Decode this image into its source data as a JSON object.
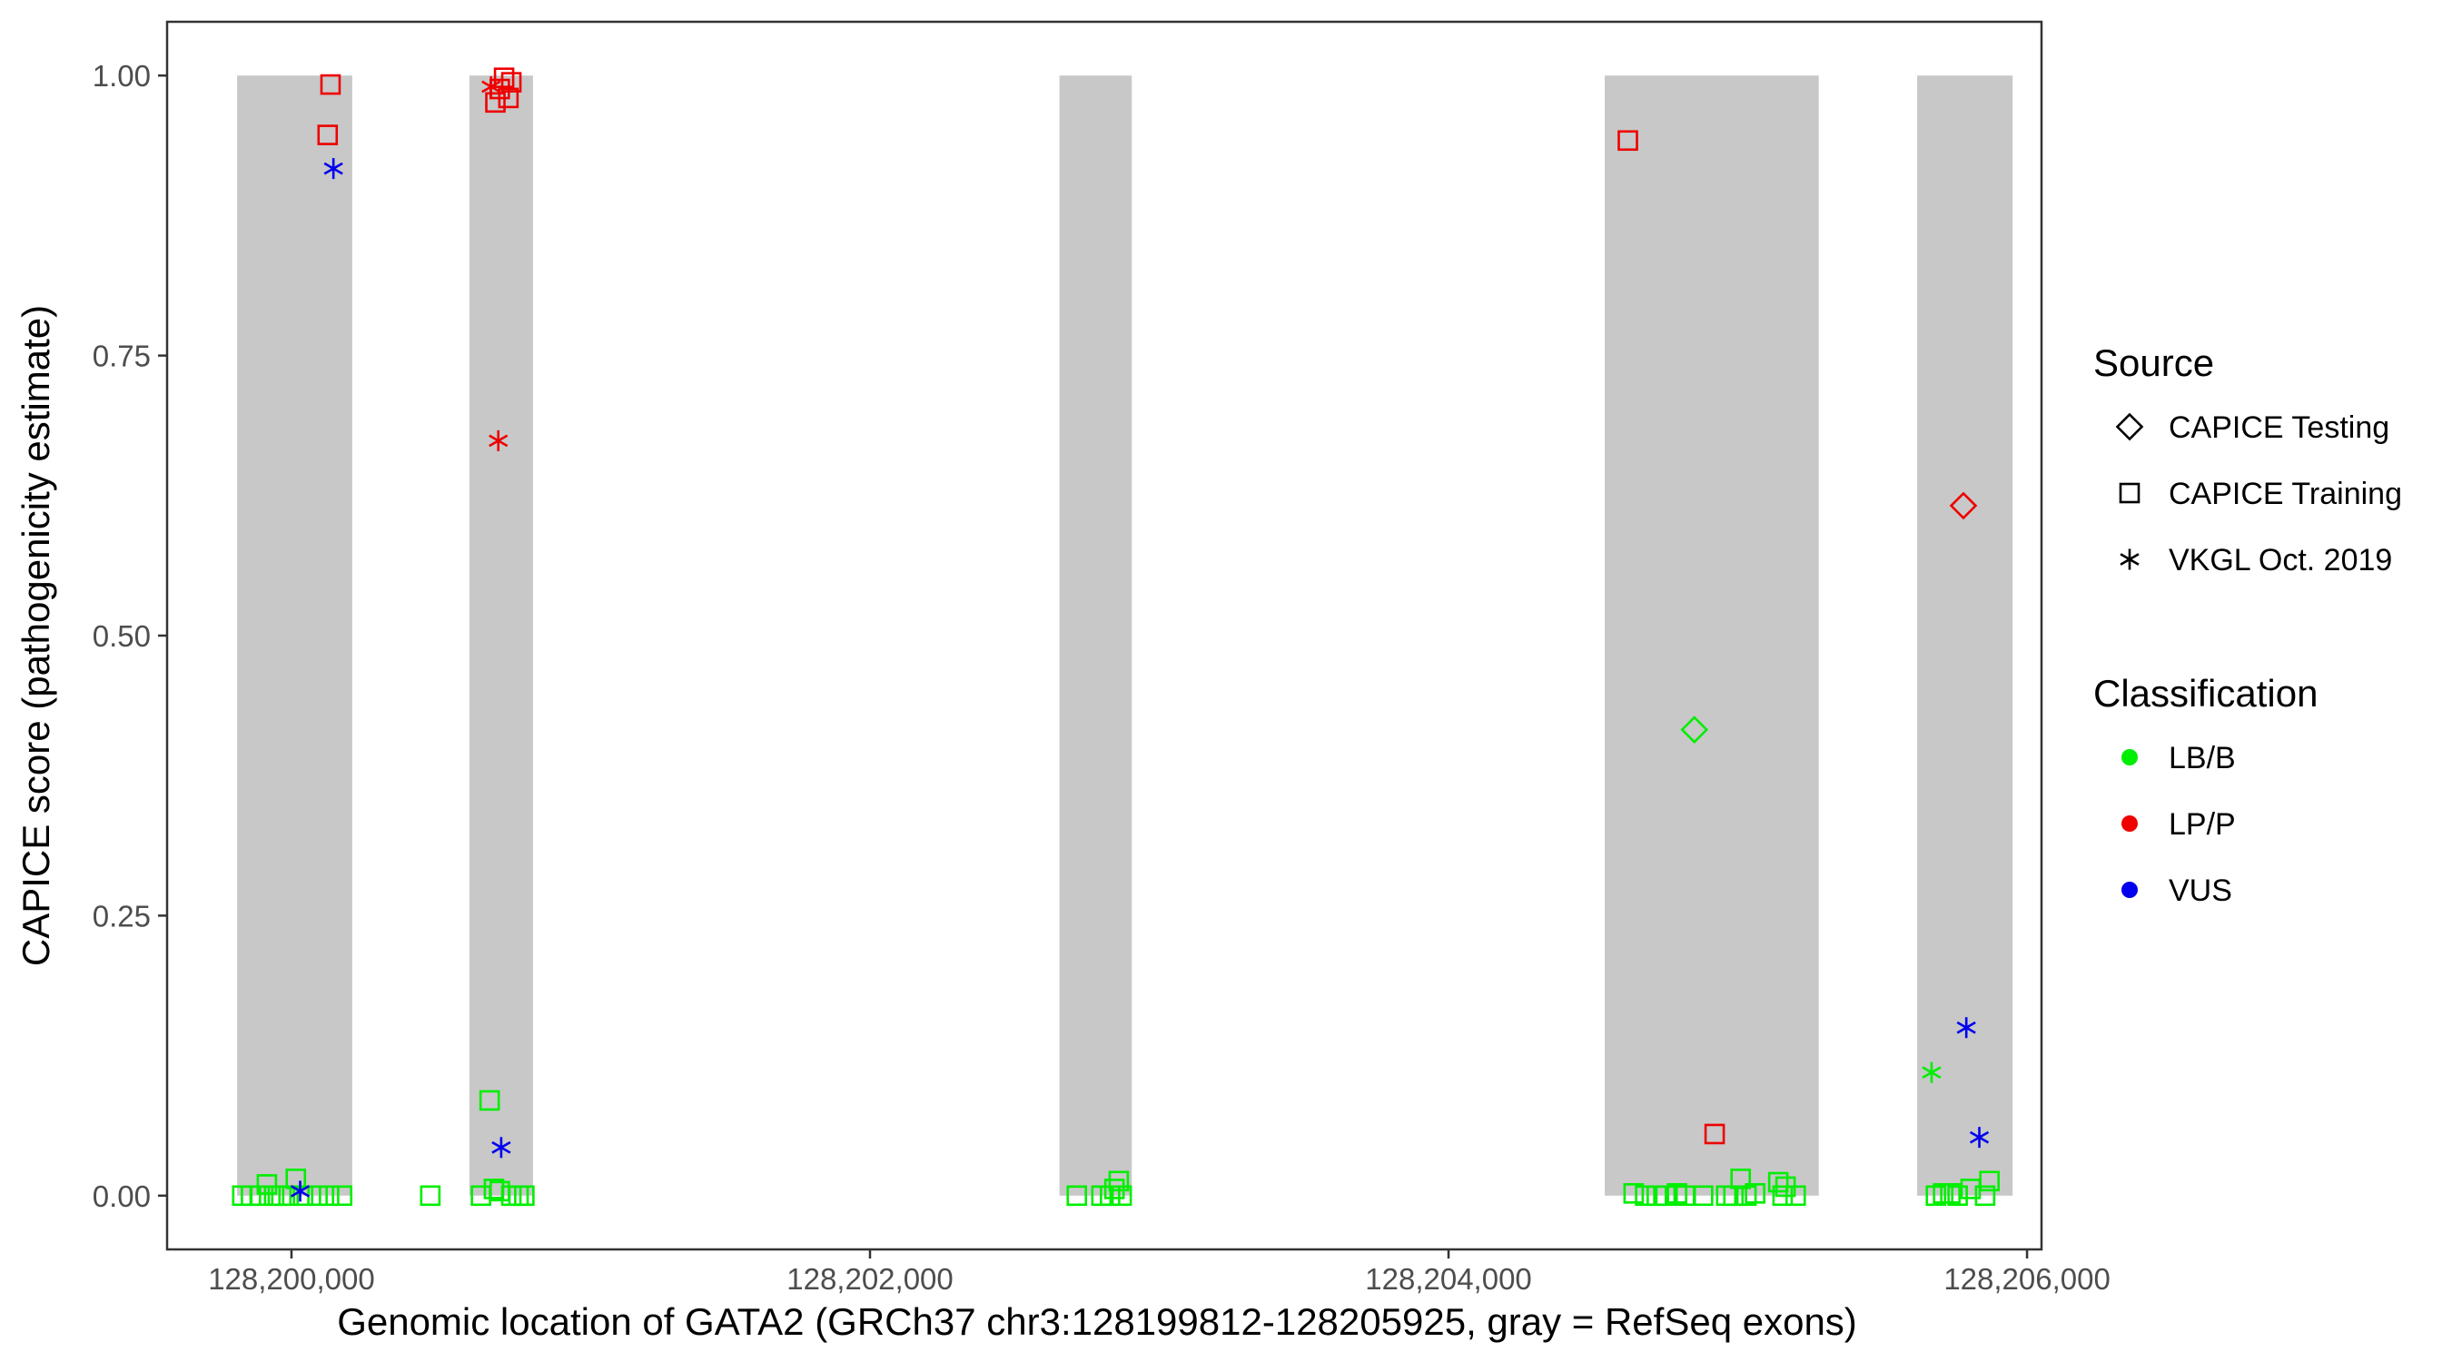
{
  "chart_data": {
    "type": "scatter",
    "title": "",
    "xlabel": "Genomic location of GATA2 (GRCh37 chr3:128199812-128205925, gray = RefSeq exons)",
    "ylabel": "CAPICE score (pathogenicity estimate)",
    "xlim": [
      128199570,
      128206050
    ],
    "ylim": [
      -0.048,
      1.048
    ],
    "x_ticks": [
      128200000,
      128202000,
      128204000,
      128206000
    ],
    "x_tick_labels": [
      "128,200,000",
      "128,202,000",
      "128,204,000",
      "128,206,000"
    ],
    "y_ticks": [
      0,
      0.25,
      0.5,
      0.75,
      1.0
    ],
    "y_tick_labels": [
      "0.00",
      "0.25",
      "0.50",
      "0.75",
      "1.00"
    ],
    "grid": false,
    "exon_shading_color": "#c8c8c8",
    "exons": [
      {
        "start": 128199812,
        "end": 128200210
      },
      {
        "start": 128200615,
        "end": 128200835
      },
      {
        "start": 128202655,
        "end": 128202905
      },
      {
        "start": 128204540,
        "end": 128205280
      },
      {
        "start": 128205620,
        "end": 128205950
      }
    ],
    "legend": {
      "placement": "right",
      "source": {
        "title": "Source",
        "entries": [
          {
            "label": "CAPICE Testing",
            "shape": "diamond"
          },
          {
            "label": "CAPICE Training",
            "shape": "square"
          },
          {
            "label": "VKGL Oct. 2019",
            "shape": "asterisk"
          }
        ]
      },
      "classification": {
        "title": "Classification",
        "entries": [
          {
            "label": "LB/B",
            "color": "#00ee00"
          },
          {
            "label": "LP/P",
            "color": "#ee0000"
          },
          {
            "label": "VUS",
            "color": "#0000ee"
          }
        ]
      }
    },
    "points": [
      {
        "x": 128199830,
        "y": 0.0,
        "source": "square",
        "cls": "LB/B"
      },
      {
        "x": 128199860,
        "y": 0.0,
        "source": "square",
        "cls": "LB/B"
      },
      {
        "x": 128199890,
        "y": 0.0,
        "source": "square",
        "cls": "LB/B"
      },
      {
        "x": 128199915,
        "y": 0.01,
        "source": "square",
        "cls": "LB/B"
      },
      {
        "x": 128199940,
        "y": 0.0,
        "source": "square",
        "cls": "LB/B"
      },
      {
        "x": 128199965,
        "y": 0.0,
        "source": "square",
        "cls": "LB/B"
      },
      {
        "x": 128199990,
        "y": 0.0,
        "source": "square",
        "cls": "LB/B"
      },
      {
        "x": 128200015,
        "y": 0.015,
        "source": "square",
        "cls": "LB/B"
      },
      {
        "x": 128200040,
        "y": 0.0,
        "source": "square",
        "cls": "LB/B"
      },
      {
        "x": 128200090,
        "y": 0.0,
        "source": "square",
        "cls": "LB/B"
      },
      {
        "x": 128200130,
        "y": 0.0,
        "source": "square",
        "cls": "LB/B"
      },
      {
        "x": 128200175,
        "y": 0.0,
        "source": "square",
        "cls": "LB/B"
      },
      {
        "x": 128200030,
        "y": 0.004,
        "source": "asterisk",
        "cls": "VUS"
      },
      {
        "x": 128200145,
        "y": 0.917,
        "source": "asterisk",
        "cls": "VUS"
      },
      {
        "x": 128200125,
        "y": 0.947,
        "source": "square",
        "cls": "LP/P"
      },
      {
        "x": 128200135,
        "y": 0.992,
        "source": "square",
        "cls": "LP/P"
      },
      {
        "x": 128200480,
        "y": 0.0,
        "source": "square",
        "cls": "LB/B"
      },
      {
        "x": 128200655,
        "y": 0.0,
        "source": "square",
        "cls": "LB/B"
      },
      {
        "x": 128200685,
        "y": 0.085,
        "source": "square",
        "cls": "LB/B"
      },
      {
        "x": 128200700,
        "y": 0.006,
        "source": "square",
        "cls": "LB/B"
      },
      {
        "x": 128200720,
        "y": 0.004,
        "source": "square",
        "cls": "LB/B"
      },
      {
        "x": 128200760,
        "y": 0.0,
        "source": "square",
        "cls": "LB/B"
      },
      {
        "x": 128200785,
        "y": 0.0,
        "source": "square",
        "cls": "LB/B"
      },
      {
        "x": 128200805,
        "y": 0.0,
        "source": "square",
        "cls": "LB/B"
      },
      {
        "x": 128200725,
        "y": 0.043,
        "source": "asterisk",
        "cls": "VUS"
      },
      {
        "x": 128200715,
        "y": 0.674,
        "source": "asterisk",
        "cls": "LP/P"
      },
      {
        "x": 128200690,
        "y": 0.99,
        "source": "asterisk",
        "cls": "LP/P"
      },
      {
        "x": 128200705,
        "y": 0.976,
        "source": "square",
        "cls": "LP/P"
      },
      {
        "x": 128200720,
        "y": 0.988,
        "source": "square",
        "cls": "LP/P"
      },
      {
        "x": 128200735,
        "y": 0.998,
        "source": "square",
        "cls": "LP/P"
      },
      {
        "x": 128200750,
        "y": 0.98,
        "source": "square",
        "cls": "LP/P"
      },
      {
        "x": 128200760,
        "y": 0.994,
        "source": "square",
        "cls": "LP/P"
      },
      {
        "x": 128202715,
        "y": 0.0,
        "source": "square",
        "cls": "LB/B"
      },
      {
        "x": 128202800,
        "y": 0.0,
        "source": "square",
        "cls": "LB/B"
      },
      {
        "x": 128202830,
        "y": 0.0,
        "source": "square",
        "cls": "LB/B"
      },
      {
        "x": 128202845,
        "y": 0.006,
        "source": "square",
        "cls": "LB/B"
      },
      {
        "x": 128202860,
        "y": 0.013,
        "source": "square",
        "cls": "LB/B"
      },
      {
        "x": 128202870,
        "y": 0.0,
        "source": "square",
        "cls": "LB/B"
      },
      {
        "x": 128204620,
        "y": 0.942,
        "source": "square",
        "cls": "LP/P"
      },
      {
        "x": 128204640,
        "y": 0.002,
        "source": "square",
        "cls": "LB/B"
      },
      {
        "x": 128204680,
        "y": 0.0,
        "source": "square",
        "cls": "LB/B"
      },
      {
        "x": 128204720,
        "y": 0.0,
        "source": "square",
        "cls": "LB/B"
      },
      {
        "x": 128204750,
        "y": 0.0,
        "source": "square",
        "cls": "LB/B"
      },
      {
        "x": 128204790,
        "y": 0.002,
        "source": "square",
        "cls": "LB/B"
      },
      {
        "x": 128204820,
        "y": 0.0,
        "source": "square",
        "cls": "LB/B"
      },
      {
        "x": 128204880,
        "y": 0.0,
        "source": "square",
        "cls": "LB/B"
      },
      {
        "x": 128204850,
        "y": 0.416,
        "source": "diamond",
        "cls": "LB/B"
      },
      {
        "x": 128204920,
        "y": 0.055,
        "source": "square",
        "cls": "LP/P"
      },
      {
        "x": 128204960,
        "y": 0.0,
        "source": "square",
        "cls": "LB/B"
      },
      {
        "x": 128204985,
        "y": 0.0,
        "source": "square",
        "cls": "LB/B"
      },
      {
        "x": 128205010,
        "y": 0.015,
        "source": "square",
        "cls": "LB/B"
      },
      {
        "x": 128205030,
        "y": 0.0,
        "source": "square",
        "cls": "LB/B"
      },
      {
        "x": 128205060,
        "y": 0.002,
        "source": "square",
        "cls": "LB/B"
      },
      {
        "x": 128205140,
        "y": 0.012,
        "source": "square",
        "cls": "LB/B"
      },
      {
        "x": 128205165,
        "y": 0.008,
        "source": "square",
        "cls": "LB/B"
      },
      {
        "x": 128205155,
        "y": 0.0,
        "source": "square",
        "cls": "LB/B"
      },
      {
        "x": 128205200,
        "y": 0.0,
        "source": "square",
        "cls": "LB/B"
      },
      {
        "x": 128205670,
        "y": 0.11,
        "source": "asterisk",
        "cls": "LB/B"
      },
      {
        "x": 128205685,
        "y": 0.0,
        "source": "square",
        "cls": "LB/B"
      },
      {
        "x": 128205710,
        "y": 0.002,
        "source": "square",
        "cls": "LB/B"
      },
      {
        "x": 128205735,
        "y": 0.002,
        "source": "square",
        "cls": "LB/B"
      },
      {
        "x": 128205760,
        "y": 0.0,
        "source": "square",
        "cls": "LB/B"
      },
      {
        "x": 128205780,
        "y": 0.616,
        "source": "diamond",
        "cls": "LP/P"
      },
      {
        "x": 128205790,
        "y": 0.15,
        "source": "asterisk",
        "cls": "VUS"
      },
      {
        "x": 128205805,
        "y": 0.006,
        "source": "square",
        "cls": "LB/B"
      },
      {
        "x": 128205835,
        "y": 0.052,
        "source": "asterisk",
        "cls": "VUS"
      },
      {
        "x": 128205855,
        "y": 0.0,
        "source": "square",
        "cls": "LB/B"
      },
      {
        "x": 128205870,
        "y": 0.013,
        "source": "square",
        "cls": "LB/B"
      }
    ]
  }
}
